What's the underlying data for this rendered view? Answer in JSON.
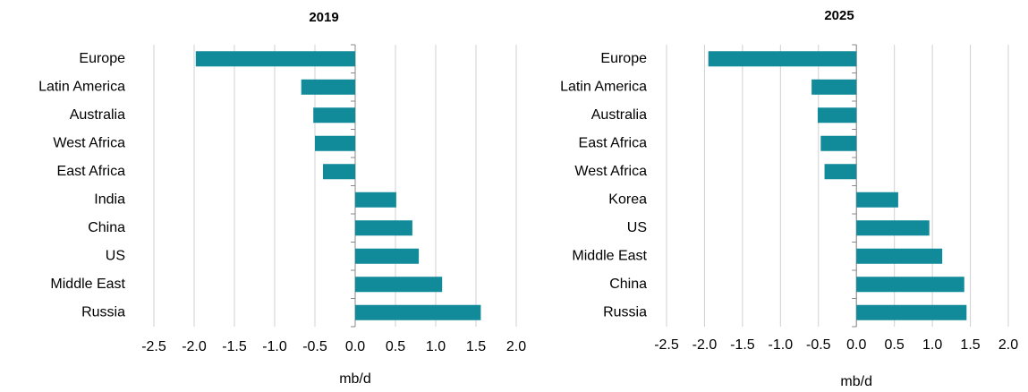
{
  "chart_data": [
    {
      "type": "hbar",
      "title": "2019",
      "x_label": "mb/d",
      "color": "#118a99",
      "grid": true,
      "categories": [
        "Europe",
        "Latin America",
        "Australia",
        "West Africa",
        "East Africa",
        "India",
        "China",
        "US",
        "Middle East",
        "Russia"
      ],
      "values": [
        -1.98,
        -0.67,
        -0.52,
        -0.5,
        -0.4,
        0.51,
        0.71,
        0.79,
        1.08,
        1.56
      ],
      "xlim": [
        -2.5,
        2.0
      ],
      "xticks": [
        -2.5,
        {
          "value": -2.0,
          "label": "-2.0"
        },
        -1.5,
        {
          "value": -1.0,
          "label": "-1.0"
        },
        -0.5,
        {
          "value": 0,
          "label": "0.0"
        },
        0.5,
        {
          "value": 1.0,
          "label": "1.0"
        },
        1.5,
        {
          "value": 2.0,
          "label": "2.0"
        }
      ]
    },
    {
      "type": "hbar",
      "title": "2025",
      "x_label": "mb/d",
      "color": "#118a99",
      "grid": true,
      "categories": [
        "Europe",
        "Latin America",
        "Australia",
        "East Africa",
        "West Africa",
        "Korea",
        "US",
        "Middle East",
        "China",
        "Russia"
      ],
      "values": [
        -1.95,
        -0.59,
        -0.51,
        -0.47,
        -0.42,
        0.55,
        0.96,
        1.13,
        1.42,
        1.45
      ],
      "xlim": [
        -2.5,
        2.0
      ],
      "xticks": [
        -2.5,
        {
          "value": -2.0,
          "label": "-2.0"
        },
        -1.5,
        {
          "value": -1.0,
          "label": "-1.0"
        },
        -0.5,
        {
          "value": 0,
          "label": "0.0"
        },
        0.5,
        {
          "value": 1.0,
          "label": "1.0"
        },
        1.5,
        {
          "value": 2.0,
          "label": "2.0"
        }
      ]
    }
  ]
}
